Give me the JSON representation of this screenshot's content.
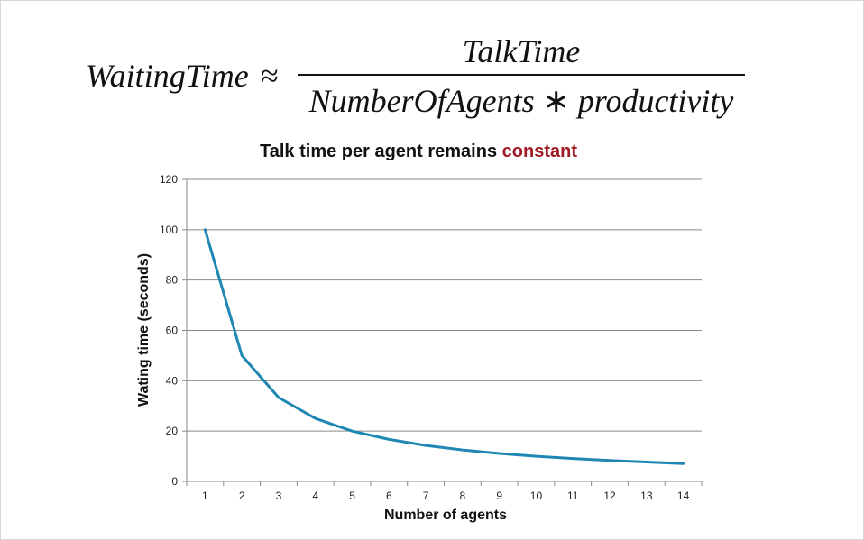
{
  "formula": {
    "lhs": "WaitingTime",
    "approx": "≈",
    "numerator": "TalkTime",
    "denominator_left": "NumberOfAgents",
    "operator": "∗",
    "denominator_right": "productivity"
  },
  "chart_data": {
    "type": "line",
    "title_prefix": "Talk time per agent remains ",
    "title_accent": "constant",
    "title_accent_color": "#a01d26",
    "xlabel": "Number of agents",
    "ylabel": "Wating time (seconds)",
    "x": [
      1,
      2,
      3,
      4,
      5,
      6,
      7,
      8,
      9,
      10,
      11,
      12,
      13,
      14
    ],
    "series": [
      {
        "color": "#1f87b3",
        "values": [
          100,
          50,
          33.3,
          25,
          20,
          16.7,
          14.3,
          12.5,
          11.1,
          10,
          9.1,
          8.3,
          7.7,
          7.1
        ]
      }
    ],
    "ylim": [
      0,
      120
    ],
    "yticks": [
      0,
      20,
      40,
      60,
      80,
      100,
      120
    ],
    "grid": true
  }
}
